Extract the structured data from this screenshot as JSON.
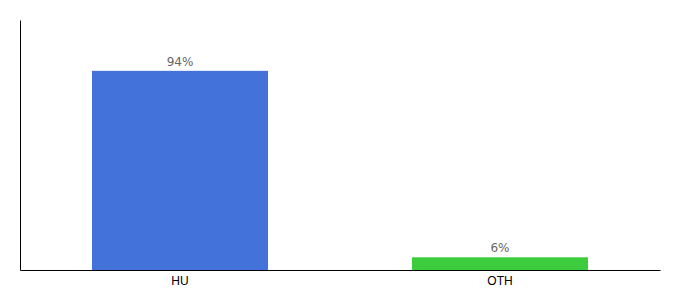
{
  "chart_data": {
    "type": "bar",
    "categories": [
      "HU",
      "OTH"
    ],
    "values": [
      94,
      6
    ],
    "value_labels": [
      "94%",
      "6%"
    ],
    "colors": [
      "#4472db",
      "#3dcc3d"
    ],
    "ylim": [
      0,
      118
    ],
    "data_labels": true,
    "tick_labels": "x"
  }
}
